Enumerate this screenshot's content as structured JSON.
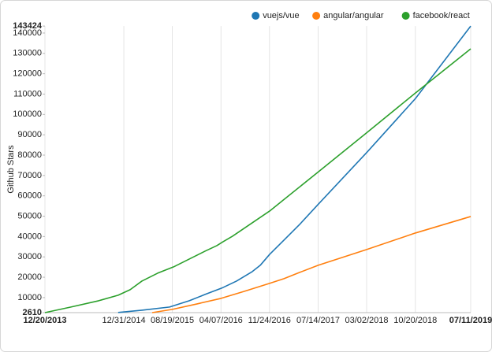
{
  "chart_data": {
    "type": "line",
    "y_label": "Github Stars",
    "xlim": [
      "2013-12-20",
      "2019-07-11"
    ],
    "xticks": [
      {
        "value": "2013-12-20",
        "label": "12/20/2013"
      },
      {
        "value": "2014-12-31",
        "label": "12/31/2014"
      },
      {
        "value": "2015-08-19",
        "label": "08/19/2015"
      },
      {
        "value": "2016-04-07",
        "label": "04/07/2016"
      },
      {
        "value": "2016-11-24",
        "label": "11/24/2016"
      },
      {
        "value": "2017-07-14",
        "label": "07/14/2017"
      },
      {
        "value": "2018-03-02",
        "label": "03/02/2018"
      },
      {
        "value": "2018-10-20",
        "label": "10/20/2018"
      },
      {
        "value": "2019-07-11",
        "label": "07/11/2019"
      }
    ],
    "ylim": [
      2610,
      143424
    ],
    "yticks": [
      2610,
      10000,
      20000,
      30000,
      40000,
      50000,
      60000,
      70000,
      80000,
      90000,
      100000,
      110000,
      120000,
      130000,
      140000,
      143424
    ],
    "grid": "x",
    "legend": "top-right",
    "series": [
      {
        "name": "vuejs/vue",
        "color": "#1f77b4",
        "x": [
          "2014-12-04",
          "2015-03-27",
          "2015-08-06",
          "2015-11-08",
          "2016-01-22",
          "2016-04-10",
          "2016-06-20",
          "2016-09-03",
          "2016-10-11",
          "2016-11-25",
          "2017-02-01",
          "2017-04-17",
          "2017-07-16",
          "2018-03-05",
          "2018-10-21",
          "2019-07-11"
        ],
        "values": [
          2700,
          3810,
          5360,
          8450,
          11550,
          14640,
          18120,
          22760,
          25860,
          31270,
          38240,
          45970,
          56030,
          81560,
          107860,
          143424
        ]
      },
      {
        "name": "angular/angular",
        "color": "#ff7f0e",
        "x": [
          "2015-05-15",
          "2015-08-19",
          "2015-12-15",
          "2016-04-07",
          "2016-07-28",
          "2016-11-24",
          "2017-02-01",
          "2017-04-17",
          "2017-07-14",
          "2018-03-02",
          "2018-10-20",
          "2019-07-11"
        ],
        "values": [
          2610,
          4200,
          6900,
          9610,
          13090,
          16960,
          19280,
          22380,
          25860,
          33600,
          41720,
          49840
        ]
      },
      {
        "name": "facebook/react",
        "color": "#2ca02c",
        "x": [
          "2013-12-20",
          "2014-04-23",
          "2014-09-02",
          "2014-12-04",
          "2015-01-30",
          "2015-03-27",
          "2015-06-10",
          "2015-08-25",
          "2015-11-08",
          "2016-01-22",
          "2016-03-18",
          "2016-04-17",
          "2016-06-01",
          "2016-09-03",
          "2016-11-25",
          "2017-07-16",
          "2018-03-05",
          "2018-10-21",
          "2019-07-11"
        ],
        "values": [
          2610,
          5358,
          8450,
          11160,
          13870,
          18120,
          21990,
          25090,
          28950,
          32820,
          35530,
          37460,
          40170,
          46750,
          52550,
          71890,
          91230,
          110570,
          132230
        ]
      }
    ]
  }
}
